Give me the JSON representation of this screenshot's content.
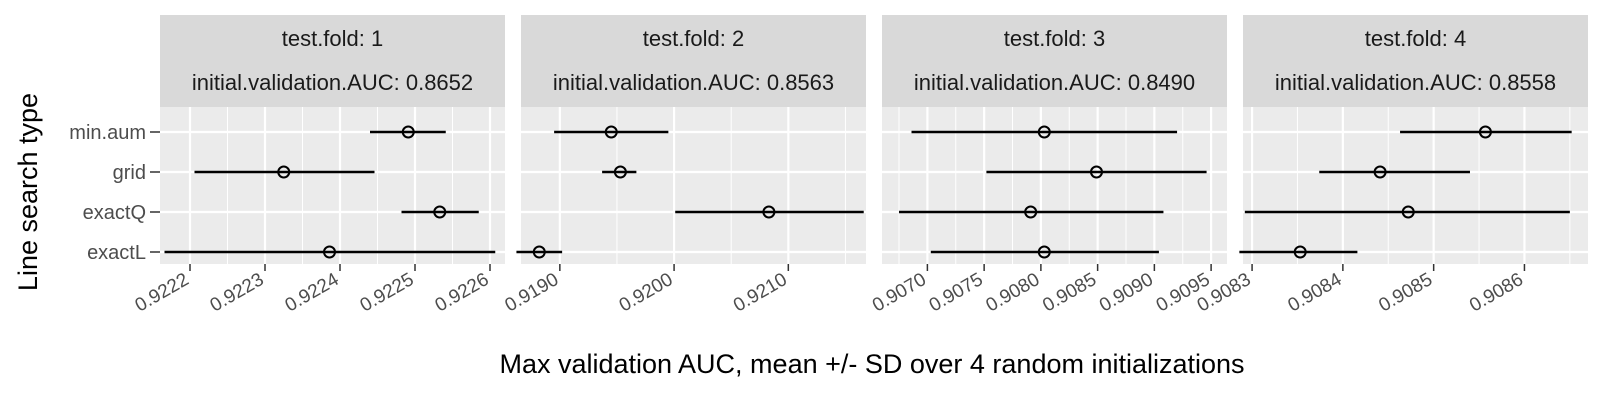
{
  "chart_data": {
    "type": "scatter",
    "subtype": "dot-errorbar-faceted",
    "xlabel": "Max validation AUC, mean +/- SD over 4 random initializations",
    "ylabel": "Line search type",
    "categories": [
      "exactL",
      "exactQ",
      "grid",
      "min.aum"
    ],
    "colors": {
      "panel_bg": "#ebebeb",
      "strip_bg": "#d9d9d9",
      "grid": "#ffffff",
      "ink": "#000000"
    },
    "facets": [
      {
        "strip": [
          "test.fold: 1",
          "initial.validation.AUC: 0.8652"
        ],
        "xlim": [
          0.92216,
          0.92262
        ],
        "ticks": [
          0.9222,
          0.9223,
          0.9224,
          0.9225,
          0.9226
        ],
        "tick_labels": [
          "0.9222",
          "0.9223",
          "0.9224",
          "0.9225",
          "0.9226"
        ],
        "points": [
          {
            "category": "min.aum",
            "mean": 0.922491,
            "lo": 0.92244,
            "hi": 0.922541
          },
          {
            "category": "grid",
            "mean": 0.922325,
            "lo": 0.922206,
            "hi": 0.922446
          },
          {
            "category": "exactQ",
            "mean": 0.922533,
            "lo": 0.922482,
            "hi": 0.922585
          },
          {
            "category": "exactL",
            "mean": 0.922386,
            "lo": 0.922166,
            "hi": 0.922607
          }
        ]
      },
      {
        "strip": [
          "test.fold: 2",
          "initial.validation.AUC: 0.8563"
        ],
        "xlim": [
          0.91866,
          0.92168
        ],
        "ticks": [
          0.919,
          0.92,
          0.921
        ],
        "tick_labels": [
          "0.9190",
          "0.9200",
          "0.9210"
        ],
        "points": [
          {
            "category": "min.aum",
            "mean": 0.91945,
            "lo": 0.91895,
            "hi": 0.91995
          },
          {
            "category": "grid",
            "mean": 0.91953,
            "lo": 0.91937,
            "hi": 0.91967
          },
          {
            "category": "exactQ",
            "mean": 0.92083,
            "lo": 0.92001,
            "hi": 0.92166
          },
          {
            "category": "exactL",
            "mean": 0.91882,
            "lo": 0.91862,
            "hi": 0.91902
          }
        ]
      },
      {
        "strip": [
          "test.fold: 3",
          "initial.validation.AUC: 0.8490"
        ],
        "xlim": [
          0.9066,
          0.90964
        ],
        "ticks": [
          0.907,
          0.9075,
          0.908,
          0.9085,
          0.909,
          0.9095
        ],
        "tick_labels": [
          "0.9070",
          "0.9075",
          "0.9080",
          "0.9085",
          "0.9090",
          "0.9095"
        ],
        "points": [
          {
            "category": "min.aum",
            "mean": 0.90803,
            "lo": 0.90686,
            "hi": 0.9092
          },
          {
            "category": "grid",
            "mean": 0.90849,
            "lo": 0.90752,
            "hi": 0.90946
          },
          {
            "category": "exactQ",
            "mean": 0.90791,
            "lo": 0.90675,
            "hi": 0.90908
          },
          {
            "category": "exactL",
            "mean": 0.90803,
            "lo": 0.90703,
            "hi": 0.90904
          }
        ]
      },
      {
        "strip": [
          "test.fold: 4",
          "initial.validation.AUC: 0.8558"
        ],
        "xlim": [
          0.90829,
          0.90867
        ],
        "ticks": [
          0.9083,
          0.9084,
          0.9085,
          0.9086
        ],
        "tick_labels": [
          "0.9083",
          "0.9084",
          "0.9085",
          "0.9086"
        ],
        "points": [
          {
            "category": "min.aum",
            "mean": 0.908557,
            "lo": 0.908463,
            "hi": 0.908652
          },
          {
            "category": "grid",
            "mean": 0.908441,
            "lo": 0.908374,
            "hi": 0.90854
          },
          {
            "category": "exactQ",
            "mean": 0.908472,
            "lo": 0.908292,
            "hi": 0.90865
          },
          {
            "category": "exactL",
            "mean": 0.908353,
            "lo": 0.908286,
            "hi": 0.908416
          }
        ]
      }
    ]
  }
}
